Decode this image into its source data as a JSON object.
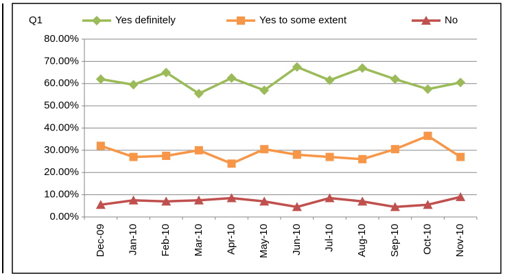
{
  "chart_data": {
    "type": "line",
    "title": "Q1",
    "categories": [
      "Dec-09",
      "Jan-10",
      "Feb-10",
      "Mar-10",
      "Apr-10",
      "May-10",
      "Jun-10",
      "Jul-10",
      "Aug-10",
      "Sep-10",
      "Oct-10",
      "Nov-10"
    ],
    "series": [
      {
        "name": "Yes definitely",
        "color": "#9bbb59",
        "marker": "diamond",
        "values": [
          62,
          59.5,
          65,
          55.5,
          62.5,
          57,
          67.5,
          61.5,
          67,
          62,
          57.5,
          60.5
        ]
      },
      {
        "name": "Yes to some extent",
        "color": "#f79646",
        "marker": "square",
        "values": [
          32,
          27,
          27.5,
          30,
          24,
          30.5,
          28,
          27,
          26,
          30.5,
          36.5,
          27
        ]
      },
      {
        "name": "No",
        "color": "#c0504d",
        "marker": "triangle",
        "values": [
          5.5,
          7.5,
          7,
          7.5,
          8.5,
          7,
          4.5,
          8.5,
          7,
          4.5,
          5.5,
          9
        ]
      }
    ],
    "ylim": [
      0,
      80
    ],
    "yticks": [
      {
        "value": 0,
        "label": "0.00%"
      },
      {
        "value": 10,
        "label": "10.00%"
      },
      {
        "value": 20,
        "label": "20.00%"
      },
      {
        "value": 30,
        "label": "30.00%"
      },
      {
        "value": 40,
        "label": "40.00%"
      },
      {
        "value": 50,
        "label": "50.00%"
      },
      {
        "value": 60,
        "label": "60.00%"
      },
      {
        "value": 70,
        "label": "70.00%"
      },
      {
        "value": 80,
        "label": "80.00%"
      }
    ],
    "grid": true,
    "legend": "top"
  }
}
